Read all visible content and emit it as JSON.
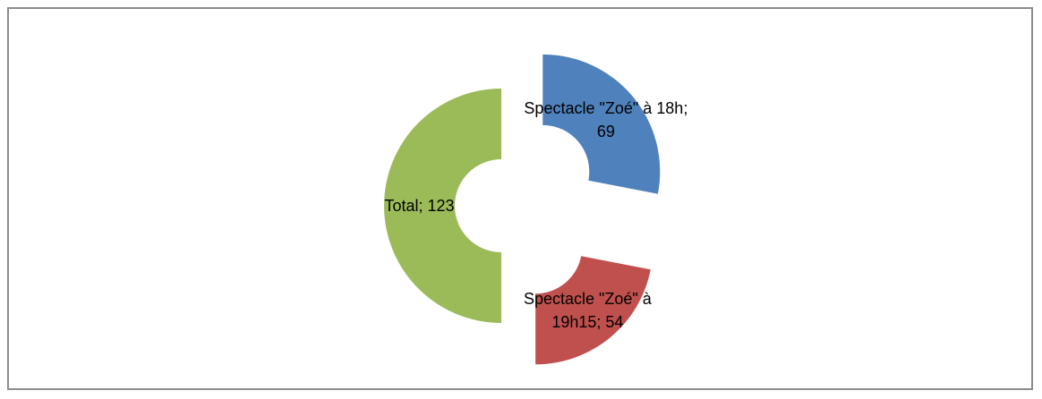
{
  "chart_data": {
    "type": "doughnut",
    "categories": [
      "Spectacle \"Zoé\" à 18h",
      "Spectacle \"Zoé\" à 19h15",
      "Total"
    ],
    "values": [
      69,
      54,
      123
    ],
    "value_labels": [
      "Spectacle \"Zoé\" à 18h; 69",
      "Spectacle \"Zoé\" à 19h15; 54",
      "Total; 123"
    ],
    "colors": [
      "#4f81bd",
      "#c0504d",
      "#9bbb59"
    ],
    "exploded": true
  }
}
